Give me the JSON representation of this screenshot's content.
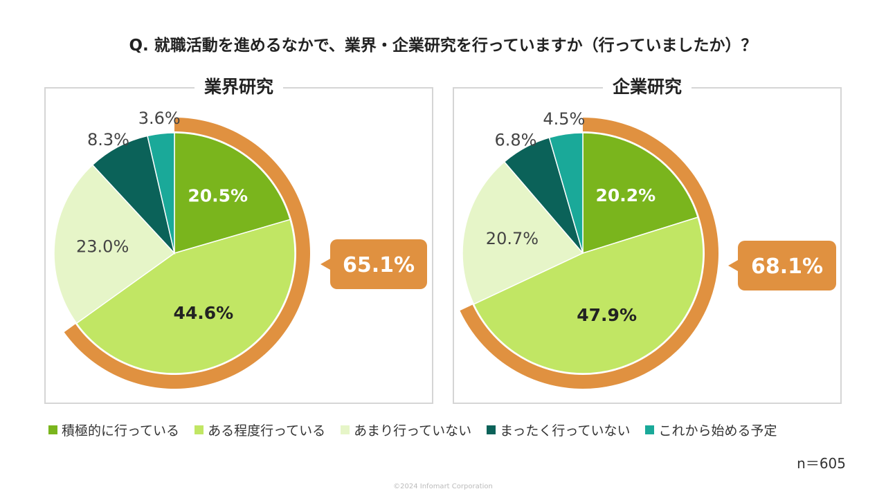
{
  "title": "Q. 就職活動を進めるなかで、業界・企業研究を行っていますか（行っていましたか）？",
  "legend": [
    {
      "label": "積極的に行っている",
      "color": "#7ab51d"
    },
    {
      "label": "ある程度行っている",
      "color": "#c1e664"
    },
    {
      "label": "あまり行っていない",
      "color": "#e6f5c8"
    },
    {
      "label": "まったく行っていない",
      "color": "#0b6259"
    },
    {
      "label": "これから始める予定",
      "color": "#1aa999"
    }
  ],
  "accent_color": "#e09140",
  "sample_size": "n＝605",
  "copyright": "©2024 Infomart Corporation",
  "chart_data": [
    {
      "type": "pie",
      "title": "業界研究",
      "categories": [
        "積極的に行っている",
        "ある程度行っている",
        "あまり行っていない",
        "まったく行っていない",
        "これから始める予定"
      ],
      "values": [
        20.5,
        44.6,
        23.0,
        8.3,
        3.6
      ],
      "labels": [
        "20.5%",
        "44.6%",
        "23.0%",
        "8.3%",
        "3.6%"
      ],
      "highlight": {
        "label": "65.1%",
        "value": 65.1,
        "covers": [
          "積極的に行っている",
          "ある程度行っている"
        ]
      }
    },
    {
      "type": "pie",
      "title": "企業研究",
      "categories": [
        "積極的に行っている",
        "ある程度行っている",
        "あまり行っていない",
        "まったく行っていない",
        "これから始める予定"
      ],
      "values": [
        20.2,
        47.9,
        20.7,
        6.8,
        4.5
      ],
      "labels": [
        "20.2%",
        "47.9%",
        "20.7%",
        "6.8%",
        "4.5%"
      ],
      "highlight": {
        "label": "68.1%",
        "value": 68.1,
        "covers": [
          "積極的に行っている",
          "ある程度行っている"
        ]
      }
    }
  ]
}
